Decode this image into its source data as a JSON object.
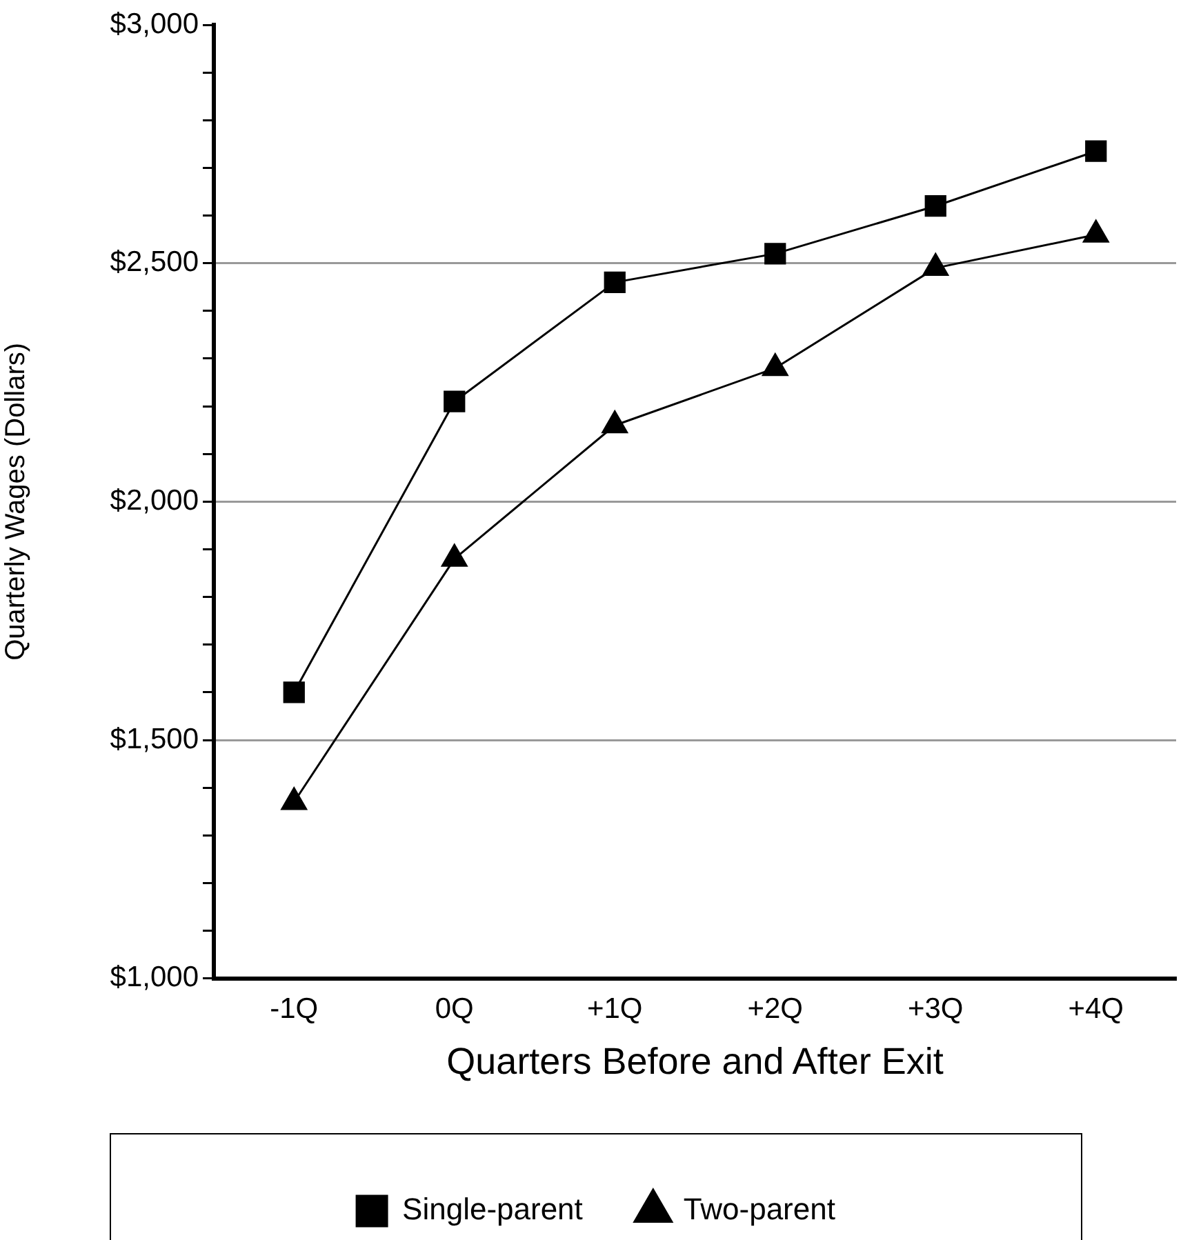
{
  "chart_data": {
    "type": "line",
    "xlabel": "Quarters Before and After Exit",
    "ylabel": "Quarterly Wages (Dollars)",
    "categories": [
      "-1Q",
      "0Q",
      "+1Q",
      "+2Q",
      "+3Q",
      "+4Q"
    ],
    "series": [
      {
        "name": "Single-parent",
        "color": "#000000",
        "marker": "square",
        "values": [
          1600,
          2210,
          2460,
          2520,
          2620,
          2735
        ]
      },
      {
        "name": "Two-parent",
        "color": "#000000",
        "marker": "triangle",
        "values": [
          1370,
          1880,
          2160,
          2280,
          2490,
          2560
        ]
      }
    ],
    "ylim": [
      1000,
      3000
    ],
    "yticks": [
      {
        "value": 1000,
        "label": "$1,000"
      },
      {
        "value": 1100,
        "label": null
      },
      {
        "value": 1200,
        "label": null
      },
      {
        "value": 1300,
        "label": null
      },
      {
        "value": 1400,
        "label": null
      },
      {
        "value": 1500,
        "label": "$1,500"
      },
      {
        "value": 1600,
        "label": null
      },
      {
        "value": 1700,
        "label": null
      },
      {
        "value": 1800,
        "label": null
      },
      {
        "value": 1900,
        "label": null
      },
      {
        "value": 2000,
        "label": "$2,000"
      },
      {
        "value": 2100,
        "label": null
      },
      {
        "value": 2200,
        "label": null
      },
      {
        "value": 2300,
        "label": null
      },
      {
        "value": 2400,
        "label": null
      },
      {
        "value": 2500,
        "label": "$2,500"
      },
      {
        "value": 2600,
        "label": null
      },
      {
        "value": 2700,
        "label": null
      },
      {
        "value": 2800,
        "label": null
      },
      {
        "value": 2900,
        "label": null
      },
      {
        "value": 3000,
        "label": "$3,000"
      }
    ],
    "grid": "y",
    "legend": "bottom",
    "line_style": "solid"
  }
}
